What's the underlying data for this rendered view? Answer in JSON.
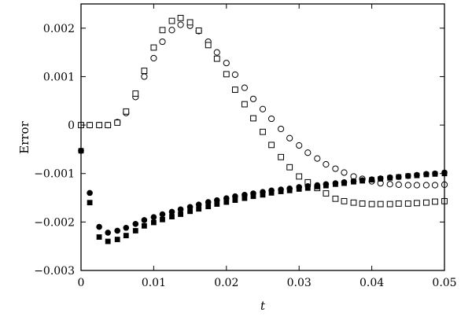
{
  "chart_data": {
    "type": "scatter",
    "title": "",
    "xlabel": "t",
    "ylabel": "Error",
    "xlim": [
      0,
      0.05
    ],
    "ylim": [
      -0.003,
      0.0025
    ],
    "xticks": [
      0,
      0.01,
      0.02,
      0.03,
      0.04,
      0.05
    ],
    "xtick_labels": [
      "0",
      "0.01",
      "0.02",
      "0.03",
      "0.04",
      "0.05"
    ],
    "yticks": [
      -0.003,
      -0.002,
      -0.001,
      0,
      0.001,
      0.002
    ],
    "ytick_labels": [
      "−0.003",
      "−0.002",
      "−0.001",
      "0",
      "0.001",
      "0.002"
    ],
    "grid": false,
    "legend": "none",
    "series": [
      {
        "marker": "open-circle",
        "color": "#000000",
        "x": [
          0,
          0.0012,
          0.0025,
          0.0037,
          0.005,
          0.0062,
          0.0075,
          0.0087,
          0.01,
          0.0112,
          0.0125,
          0.0137,
          0.015,
          0.0162,
          0.0175,
          0.0187,
          0.02,
          0.0212,
          0.0225,
          0.0237,
          0.025,
          0.0262,
          0.0275,
          0.0287,
          0.03,
          0.0312,
          0.0325,
          0.0337,
          0.035,
          0.0362,
          0.0375,
          0.0387,
          0.04,
          0.0412,
          0.0425,
          0.0437,
          0.045,
          0.0462,
          0.0475,
          0.0487,
          0.05
        ],
        "y": [
          0,
          0,
          0,
          0,
          6e-05,
          0.00025,
          0.00058,
          0.001,
          0.00138,
          0.00172,
          0.00196,
          0.00207,
          0.00205,
          0.00194,
          0.00172,
          0.0015,
          0.00128,
          0.00104,
          0.00077,
          0.00054,
          0.00033,
          0.00013,
          -8e-05,
          -0.00027,
          -0.00042,
          -0.00057,
          -0.00069,
          -0.00081,
          -0.0009,
          -0.00098,
          -0.00106,
          -0.00111,
          -0.00116,
          -0.0012,
          -0.00122,
          -0.00123,
          -0.00124,
          -0.00124,
          -0.00124,
          -0.00124,
          -0.00123
        ]
      },
      {
        "marker": "open-square",
        "color": "#000000",
        "x": [
          0,
          0.0012,
          0.0025,
          0.0037,
          0.005,
          0.0062,
          0.0075,
          0.0087,
          0.01,
          0.0112,
          0.0125,
          0.0137,
          0.015,
          0.0162,
          0.0175,
          0.0187,
          0.02,
          0.0212,
          0.0225,
          0.0237,
          0.025,
          0.0262,
          0.0275,
          0.0287,
          0.03,
          0.0312,
          0.0325,
          0.0337,
          0.035,
          0.0362,
          0.0375,
          0.0387,
          0.04,
          0.0412,
          0.0425,
          0.0437,
          0.045,
          0.0462,
          0.0475,
          0.0487,
          0.05
        ],
        "y": [
          0,
          0,
          0,
          0,
          5e-05,
          0.00028,
          0.00065,
          0.00112,
          0.0016,
          0.00196,
          0.00215,
          0.00221,
          0.00212,
          0.00195,
          0.00165,
          0.00137,
          0.00105,
          0.00073,
          0.00043,
          0.00014,
          -0.00014,
          -0.00041,
          -0.00066,
          -0.00087,
          -0.00106,
          -0.00118,
          -0.0013,
          -0.00141,
          -0.00152,
          -0.00157,
          -0.0016,
          -0.00162,
          -0.00163,
          -0.00163,
          -0.00163,
          -0.00162,
          -0.00162,
          -0.00161,
          -0.0016,
          -0.00158,
          -0.00157
        ]
      },
      {
        "marker": "filled-circle",
        "color": "#000000",
        "x": [
          0,
          0.0012,
          0.0025,
          0.0037,
          0.005,
          0.0062,
          0.0075,
          0.0087,
          0.01,
          0.0112,
          0.0125,
          0.0137,
          0.015,
          0.0162,
          0.0175,
          0.0187,
          0.02,
          0.0212,
          0.0225,
          0.0237,
          0.025,
          0.0262,
          0.0275,
          0.0287,
          0.03,
          0.0312,
          0.0325,
          0.0337,
          0.035,
          0.0362,
          0.0375,
          0.0387,
          0.04,
          0.0412,
          0.0425,
          0.0437,
          0.045,
          0.0462,
          0.0475,
          0.0487,
          0.05
        ],
        "y": [
          -0.00053,
          -0.0014,
          -0.0021,
          -0.00222,
          -0.00218,
          -0.00212,
          -0.00204,
          -0.00196,
          -0.0019,
          -0.00184,
          -0.00179,
          -0.00174,
          -0.00169,
          -0.00164,
          -0.00159,
          -0.00155,
          -0.00151,
          -0.00147,
          -0.00144,
          -0.00141,
          -0.00138,
          -0.00135,
          -0.00133,
          -0.00131,
          -0.00128,
          -0.00126,
          -0.00124,
          -0.00122,
          -0.0012,
          -0.00118,
          -0.00116,
          -0.00114,
          -0.00112,
          -0.0011,
          -0.00108,
          -0.00107,
          -0.00105,
          -0.00103,
          -0.00101,
          -0.001,
          -0.00098
        ]
      },
      {
        "marker": "filled-square",
        "color": "#000000",
        "x": [
          0,
          0.0012,
          0.0025,
          0.0037,
          0.005,
          0.0062,
          0.0075,
          0.0087,
          0.01,
          0.0112,
          0.0125,
          0.0137,
          0.015,
          0.0162,
          0.0175,
          0.0187,
          0.02,
          0.0212,
          0.0225,
          0.0237,
          0.025,
          0.0262,
          0.0275,
          0.0287,
          0.03,
          0.0312,
          0.0325,
          0.0337,
          0.035,
          0.0362,
          0.0375,
          0.0387,
          0.04,
          0.0412,
          0.0425,
          0.0437,
          0.045,
          0.0462,
          0.0475,
          0.0487,
          0.05
        ],
        "y": [
          -0.00053,
          -0.0016,
          -0.00231,
          -0.0024,
          -0.00236,
          -0.00228,
          -0.00218,
          -0.00208,
          -0.00201,
          -0.00195,
          -0.00189,
          -0.00184,
          -0.00178,
          -0.00173,
          -0.00168,
          -0.00163,
          -0.00159,
          -0.00155,
          -0.00151,
          -0.00147,
          -0.00144,
          -0.0014,
          -0.00137,
          -0.00135,
          -0.00132,
          -0.0013,
          -0.00127,
          -0.00125,
          -0.00122,
          -0.0012,
          -0.00117,
          -0.00115,
          -0.00113,
          -0.00111,
          -0.00109,
          -0.00107,
          -0.00105,
          -0.00104,
          -0.00102,
          -0.00101,
          -0.001
        ]
      }
    ]
  }
}
